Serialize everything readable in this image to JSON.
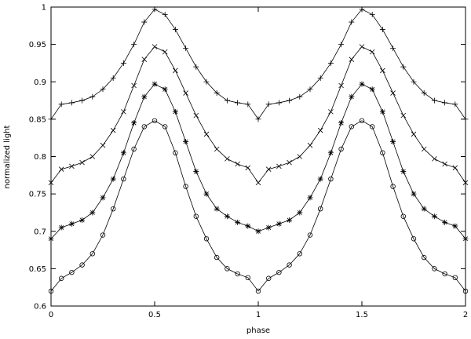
{
  "chart_data": {
    "type": "line",
    "xlabel": "phase",
    "ylabel": "normalized light",
    "xlim": [
      0,
      2
    ],
    "ylim": [
      0.6,
      1
    ],
    "xticks": [
      0,
      0.5,
      1,
      1.5,
      2
    ],
    "yticks": [
      0.6,
      0.65,
      0.7,
      0.75,
      0.8,
      0.85,
      0.9,
      0.95,
      1
    ],
    "x": [
      0,
      0.05,
      0.1,
      0.15,
      0.2,
      0.25,
      0.3,
      0.35,
      0.4,
      0.45,
      0.5,
      0.55,
      0.6,
      0.65,
      0.7,
      0.75,
      0.8,
      0.85,
      0.9,
      0.95,
      1,
      1.05,
      1.1,
      1.15,
      1.2,
      1.25,
      1.3,
      1.35,
      1.4,
      1.45,
      1.5,
      1.55,
      1.6,
      1.65,
      1.7,
      1.75,
      1.8,
      1.85,
      1.9,
      1.95,
      2
    ],
    "series": [
      {
        "marker": "plus",
        "color": "#000000",
        "values": [
          0.85,
          0.87,
          0.872,
          0.875,
          0.88,
          0.89,
          0.905,
          0.925,
          0.95,
          0.98,
          0.997,
          0.99,
          0.97,
          0.945,
          0.92,
          0.9,
          0.885,
          0.875,
          0.872,
          0.87,
          0.85,
          0.87,
          0.872,
          0.875,
          0.88,
          0.89,
          0.905,
          0.925,
          0.95,
          0.98,
          0.997,
          0.99,
          0.97,
          0.945,
          0.92,
          0.9,
          0.885,
          0.875,
          0.872,
          0.87,
          0.85
        ]
      },
      {
        "marker": "cross",
        "color": "#000000",
        "values": [
          0.765,
          0.783,
          0.787,
          0.792,
          0.8,
          0.815,
          0.835,
          0.86,
          0.895,
          0.93,
          0.947,
          0.94,
          0.915,
          0.885,
          0.855,
          0.83,
          0.81,
          0.797,
          0.79,
          0.785,
          0.765,
          0.783,
          0.787,
          0.792,
          0.8,
          0.815,
          0.835,
          0.86,
          0.895,
          0.93,
          0.947,
          0.94,
          0.915,
          0.885,
          0.855,
          0.83,
          0.81,
          0.797,
          0.79,
          0.785,
          0.765
        ]
      },
      {
        "marker": "star",
        "color": "#000000",
        "values": [
          0.69,
          0.705,
          0.71,
          0.715,
          0.725,
          0.745,
          0.77,
          0.805,
          0.845,
          0.88,
          0.897,
          0.89,
          0.86,
          0.82,
          0.78,
          0.75,
          0.73,
          0.72,
          0.712,
          0.707,
          0.7,
          0.705,
          0.71,
          0.715,
          0.725,
          0.745,
          0.77,
          0.805,
          0.845,
          0.88,
          0.897,
          0.89,
          0.86,
          0.82,
          0.78,
          0.75,
          0.73,
          0.72,
          0.712,
          0.707,
          0.69
        ]
      },
      {
        "marker": "circle",
        "color": "#000000",
        "values": [
          0.62,
          0.637,
          0.645,
          0.655,
          0.67,
          0.695,
          0.73,
          0.77,
          0.81,
          0.84,
          0.848,
          0.84,
          0.805,
          0.76,
          0.72,
          0.69,
          0.665,
          0.65,
          0.643,
          0.638,
          0.62,
          0.637,
          0.645,
          0.655,
          0.67,
          0.695,
          0.73,
          0.77,
          0.81,
          0.84,
          0.848,
          0.84,
          0.805,
          0.76,
          0.72,
          0.69,
          0.665,
          0.65,
          0.643,
          0.638,
          0.62
        ]
      }
    ]
  }
}
